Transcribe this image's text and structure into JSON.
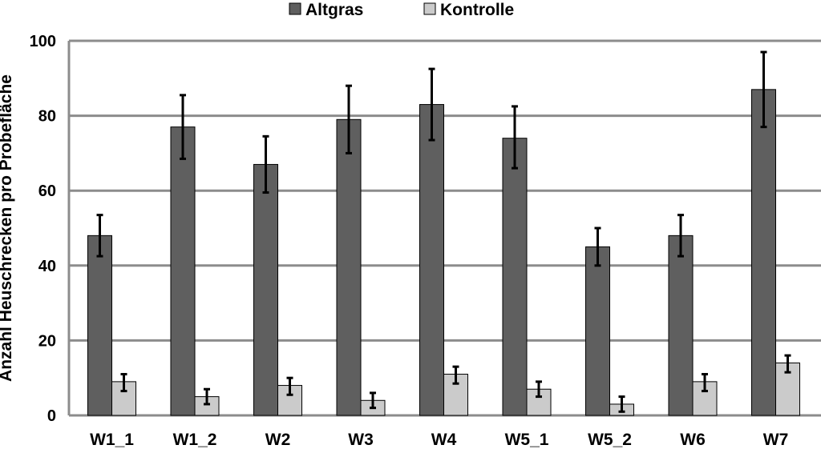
{
  "chart_data": {
    "type": "bar",
    "title": "",
    "xlabel": "",
    "ylabel": "Anzahl Heuschrecken pro Probefläche",
    "ylim": [
      0,
      100
    ],
    "yticks": [
      0,
      20,
      40,
      60,
      80,
      100
    ],
    "grid": true,
    "legend_position": "top-center",
    "categories": [
      "W1_1",
      "W1_2",
      "W2",
      "W3",
      "W4",
      "W5_1",
      "W5_2",
      "W6",
      "W7"
    ],
    "series": [
      {
        "name": "Altgras",
        "color": "#5f5f5f",
        "values": [
          48,
          77,
          67,
          79,
          83,
          74,
          45,
          48,
          87
        ],
        "error_low": [
          42.5,
          68.5,
          59.5,
          70.0,
          73.5,
          66.0,
          40.0,
          42.5,
          77.0
        ],
        "error_high": [
          53.5,
          85.5,
          74.5,
          88.0,
          92.5,
          82.5,
          50.0,
          53.5,
          97.0
        ]
      },
      {
        "name": "Kontrolle",
        "color": "#cbcbcb",
        "values": [
          9,
          5,
          8,
          4,
          11,
          7,
          3,
          9,
          14
        ],
        "error_low": [
          6.5,
          3.0,
          5.5,
          2.0,
          8.5,
          5.0,
          1.0,
          6.5,
          11.5
        ],
        "error_high": [
          11.0,
          7.0,
          10.0,
          6.0,
          13.0,
          9.0,
          5.0,
          11.0,
          16.0
        ]
      }
    ]
  }
}
